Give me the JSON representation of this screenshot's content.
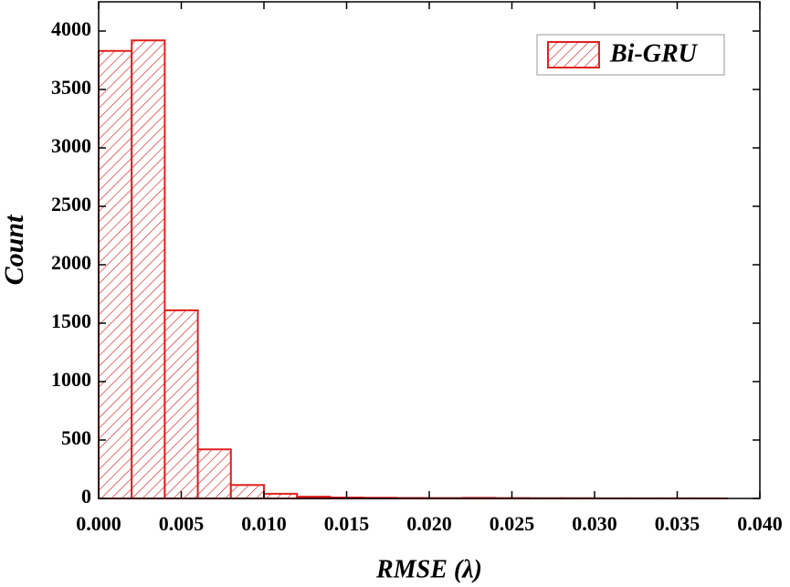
{
  "chart_data": {
    "type": "histogram",
    "xlabel": "RMSE (λ)",
    "ylabel": "Count",
    "bins": [
      0,
      0.002,
      0.004,
      0.006,
      0.008,
      0.01,
      0.012,
      0.014,
      0.016,
      0.018,
      0.02,
      0.022,
      0.024,
      0.026,
      0.028,
      0.03,
      0.032,
      0.034,
      0.036,
      0.038
    ],
    "series": [
      {
        "name": "Bi-GRU",
        "color": "#e02020",
        "values": [
          3830,
          3920,
          1610,
          420,
          115,
          40,
          15,
          8,
          6,
          4,
          3,
          5,
          3,
          2,
          2,
          1,
          1,
          1,
          1
        ]
      }
    ],
    "xlim": [
      0,
      0.04
    ],
    "ylim": [
      0,
      4250
    ],
    "xticks": [
      {
        "value": 0,
        "label": "0.000"
      },
      {
        "value": 0.005,
        "label": "0.005"
      },
      {
        "value": 0.01,
        "label": "0.010"
      },
      {
        "value": 0.015,
        "label": "0.015"
      },
      {
        "value": 0.02,
        "label": "0.020"
      },
      {
        "value": 0.025,
        "label": "0.025"
      },
      {
        "value": 0.03,
        "label": "0.030"
      },
      {
        "value": 0.035,
        "label": "0.035"
      },
      {
        "value": 0.04,
        "label": "0.040"
      }
    ],
    "yticks": [
      0,
      500,
      1000,
      1500,
      2000,
      2500,
      3000,
      3500,
      4000
    ],
    "legend": "upper right",
    "grid": false
  }
}
